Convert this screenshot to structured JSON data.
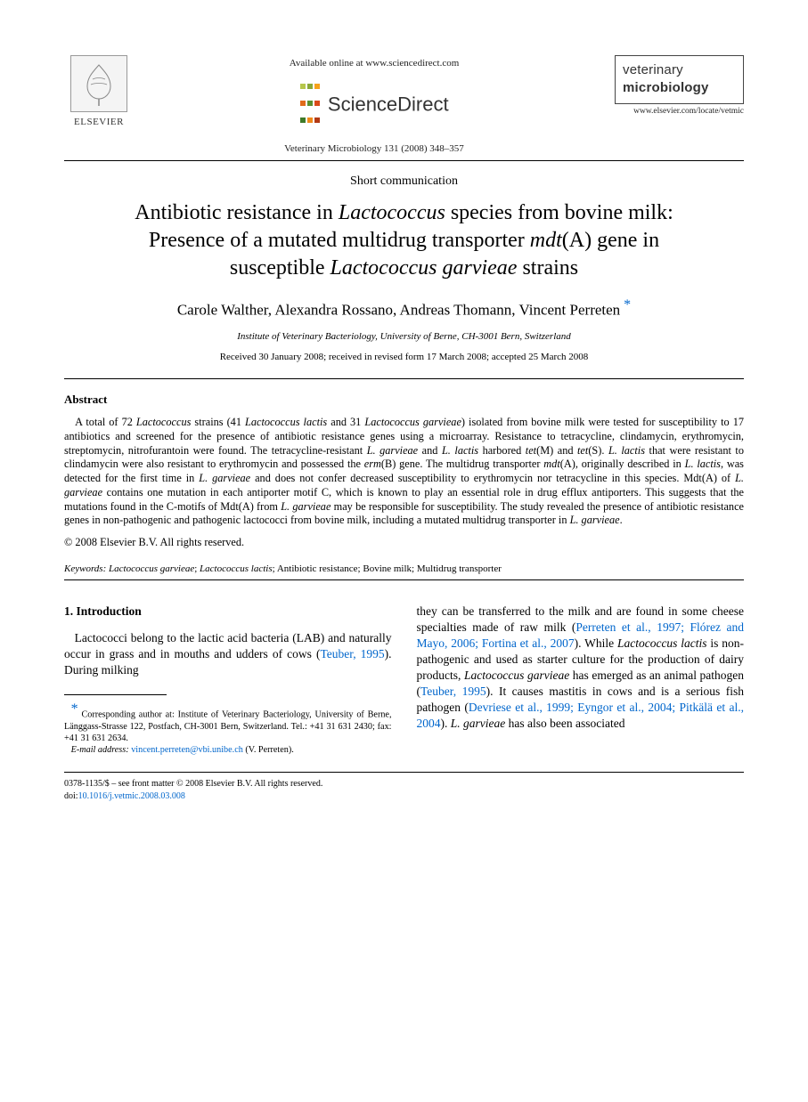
{
  "header": {
    "available_online": "Available online at www.sciencedirect.com",
    "sciencedirect": "ScienceDirect",
    "journal_ref": "Veterinary Microbiology 131 (2008) 348–357",
    "elsevier_name": "ELSEVIER",
    "journal_box_line1": "veterinary",
    "journal_box_line2": "microbiology",
    "journal_url": "www.elsevier.com/locate/vetmic",
    "sd_dot_colors": [
      "#b6c64b",
      "#8aa838",
      "#f6a21a",
      "#e16b1a",
      "#5a8f2f",
      "#d94b1a",
      "#3f7a28",
      "#f08a1a",
      "#b33a14"
    ]
  },
  "article": {
    "short_comm": "Short communication",
    "title_line1_a": "Antibiotic resistance in ",
    "title_line1_b": "Lactococcus",
    "title_line1_c": " species from bovine milk:",
    "title_line2_a": "Presence of a mutated multidrug transporter ",
    "title_line2_b": "mdt",
    "title_line2_c": "(A) gene in",
    "title_line3_a": "susceptible ",
    "title_line3_b": "Lactococcus garvieae",
    "title_line3_c": " strains",
    "authors": "Carole Walther, Alexandra Rossano, Andreas Thomann, Vincent Perreten",
    "affiliation": "Institute of Veterinary Bacteriology, University of Berne, CH-3001 Bern, Switzerland",
    "dates": "Received 30 January 2008; received in revised form 17 March 2008; accepted 25 March 2008"
  },
  "abstract": {
    "heading": "Abstract",
    "p1a": "A total of 72 ",
    "p1b": "Lactococcus",
    "p1c": " strains (41 ",
    "p1d": "Lactococcus lactis",
    "p1e": " and 31 ",
    "p1f": "Lactococcus garvieae",
    "p1g": ") isolated from bovine milk were tested for susceptibility to 17 antibiotics and screened for the presence of antibiotic resistance genes using a microarray. Resistance to tetracycline, clindamycin, erythromycin, streptomycin, nitrofurantoin were found. The tetracycline-resistant ",
    "p1h": "L. garvieae",
    "p1i": " and ",
    "p1j": "L. lactis",
    "p1k": " harbored ",
    "p1l": "tet",
    "p1m": "(M) and ",
    "p1n": "tet",
    "p1o": "(S). ",
    "p1p": "L. lactis",
    "p1q": " that were resistant to clindamycin were also resistant to erythromycin and possessed the ",
    "p1r": "erm",
    "p1s": "(B) gene. The multidrug transporter ",
    "p1t": "mdt",
    "p1u": "(A), originally described in ",
    "p1v": "L. lactis",
    "p1w": ", was detected for the first time in ",
    "p1x": "L. garvieae",
    "p1y": " and does not confer decreased susceptibility to erythromycin nor tetracycline in this species. Mdt(A) of ",
    "p1z": "L. garvieae",
    "p1aa": " contains one mutation in each antiporter motif C, which is known to play an essential role in drug efflux antiporters. This suggests that the mutations found in the C-motifs of Mdt(A) from ",
    "p1ab": "L. garvieae",
    "p1ac": " may be responsible for susceptibility. The study revealed the presence of antibiotic resistance genes in non-pathogenic and pathogenic lactococci from bovine milk, including a mutated multidrug transporter in ",
    "p1ad": "L. garvieae",
    "p1ae": ".",
    "copyright": "© 2008 Elsevier B.V. All rights reserved."
  },
  "keywords": {
    "label": "Keywords:",
    "body_a": " Lactococcus garvieae",
    "body_b": "; ",
    "body_c": "Lactococcus lactis",
    "body_d": "; Antibiotic resistance; Bovine milk; Multidrug transporter"
  },
  "section1": {
    "heading": "1.  Introduction",
    "left_a": "Lactococci belong to the lactic acid bacteria (LAB) and naturally occur in grass and in mouths and udders of cows (",
    "left_cite1": "Teuber, 1995",
    "left_b": "). During milking",
    "right_a": "they can be transferred to the milk and are found in some cheese specialties made of raw milk (",
    "right_cite1": "Perreten et al., 1997; Flórez and Mayo, 2006; Fortina et al., 2007",
    "right_b": "). While ",
    "right_c": "Lactococcus lactis",
    "right_d": " is non-pathogenic and used as starter culture for the production of dairy products, ",
    "right_e": "Lactococcus garvieae",
    "right_f": " has emerged as an animal pathogen (",
    "right_cite2": "Teuber, 1995",
    "right_g": "). It causes mastitis in cows and is a serious fish pathogen (",
    "right_cite3": "Devriese et al., 1999; Eyngor et al., 2004; Pitkälä et al., 2004",
    "right_h": "). ",
    "right_i": "L. garvieae",
    "right_j": " has also been associated"
  },
  "footnote": {
    "star": "*",
    "text": " Corresponding author at: Institute of Veterinary Bacteriology, University of Berne, Länggass-Strasse 122, Postfach, CH-3001 Bern, Switzerland. Tel.: +41 31 631 2430; fax: +41 31 631 2634.",
    "email_label": "E-mail address:",
    "email": " vincent.perreten@vbi.unibe.ch",
    "email_suffix": " (V. Perreten)."
  },
  "bottom": {
    "line1": "0378-1135/$ – see front matter © 2008 Elsevier B.V. All rights reserved.",
    "doi_prefix": "doi:",
    "doi": "10.1016/j.vetmic.2008.03.008"
  }
}
